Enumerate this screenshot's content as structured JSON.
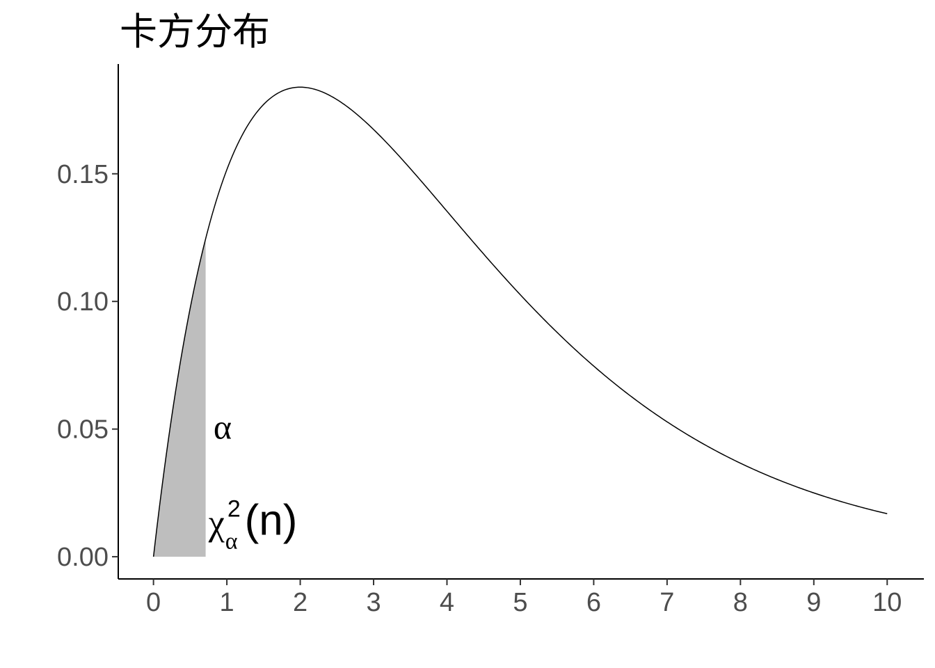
{
  "chart_data": {
    "type": "area",
    "title": "卡方分布",
    "xlabel": "",
    "ylabel": "",
    "distribution": "chi-square",
    "degrees_of_freedom": 4,
    "x_range": [
      0,
      10
    ],
    "xlim": [
      -0.48,
      10.5
    ],
    "ylim": [
      -0.0087,
      0.193
    ],
    "x_ticks": [
      0,
      1,
      2,
      3,
      4,
      5,
      6,
      7,
      8,
      9,
      10
    ],
    "y_ticks": [
      0.0,
      0.05,
      0.1,
      0.15
    ],
    "y_tick_labels": [
      "0.00",
      "0.05",
      "0.10",
      "0.15"
    ],
    "grid": false,
    "series": [
      {
        "x": [
          0,
          1,
          2,
          3,
          4,
          5,
          6,
          7,
          8,
          9,
          10
        ],
        "y": [
          0,
          0.1516,
          0.1839,
          0.1673,
          0.1353,
          0.1026,
          0.0747,
          0.0528,
          0.0366,
          0.025,
          0.0168
        ],
        "color": "#000000"
      }
    ],
    "shaded_region": {
      "from": 0,
      "to": 0.711,
      "alpha": 0.05,
      "color": "#bebebe"
    },
    "annotations": {
      "alpha_label": {
        "text": "α",
        "x": 0.95,
        "y": 0.05
      },
      "quantile_label": {
        "base": "χ",
        "sup": "2",
        "sub": "α",
        "suffix": "(n)",
        "x": 0.75,
        "y": 0.008
      }
    }
  }
}
